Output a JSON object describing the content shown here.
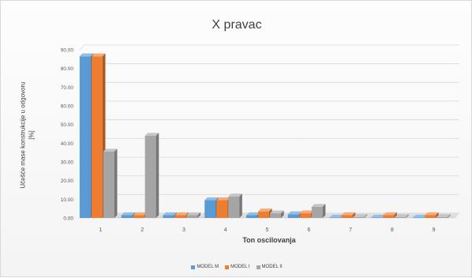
{
  "chart_data": {
    "type": "bar",
    "title": "X pravac",
    "xlabel": "Ton oscilovanja",
    "ylabel_line1": "Učešće mase konstrukcije u odgovoru",
    "ylabel_line2": "[%]",
    "ylim": [
      0,
      90
    ],
    "yticks": [
      "0.00",
      "10.00",
      "20.00",
      "30.00",
      "40.00",
      "50.00",
      "60.00",
      "70.00",
      "80.00",
      "90.00"
    ],
    "categories": [
      "1",
      "2",
      "3",
      "4",
      "5",
      "6",
      "7",
      "8",
      "9"
    ],
    "series": [
      {
        "name": "MODEL M",
        "color": "#5b9bd5",
        "values": [
          86.5,
          1.5,
          1.5,
          9.5,
          1.5,
          2.0,
          0.2,
          0.2,
          0.2
        ]
      },
      {
        "name": "MODEL I",
        "color": "#ed7d31",
        "values": [
          86.5,
          1.5,
          1.5,
          9.5,
          3.5,
          2.5,
          1.5,
          1.5,
          1.5
        ]
      },
      {
        "name": "MODEL II",
        "color": "#a5a5a5",
        "values": [
          35.5,
          44.0,
          1.5,
          11.5,
          2.5,
          6.0,
          0.5,
          0.5,
          0.5
        ]
      }
    ],
    "grid": true,
    "legend_position": "bottom"
  }
}
